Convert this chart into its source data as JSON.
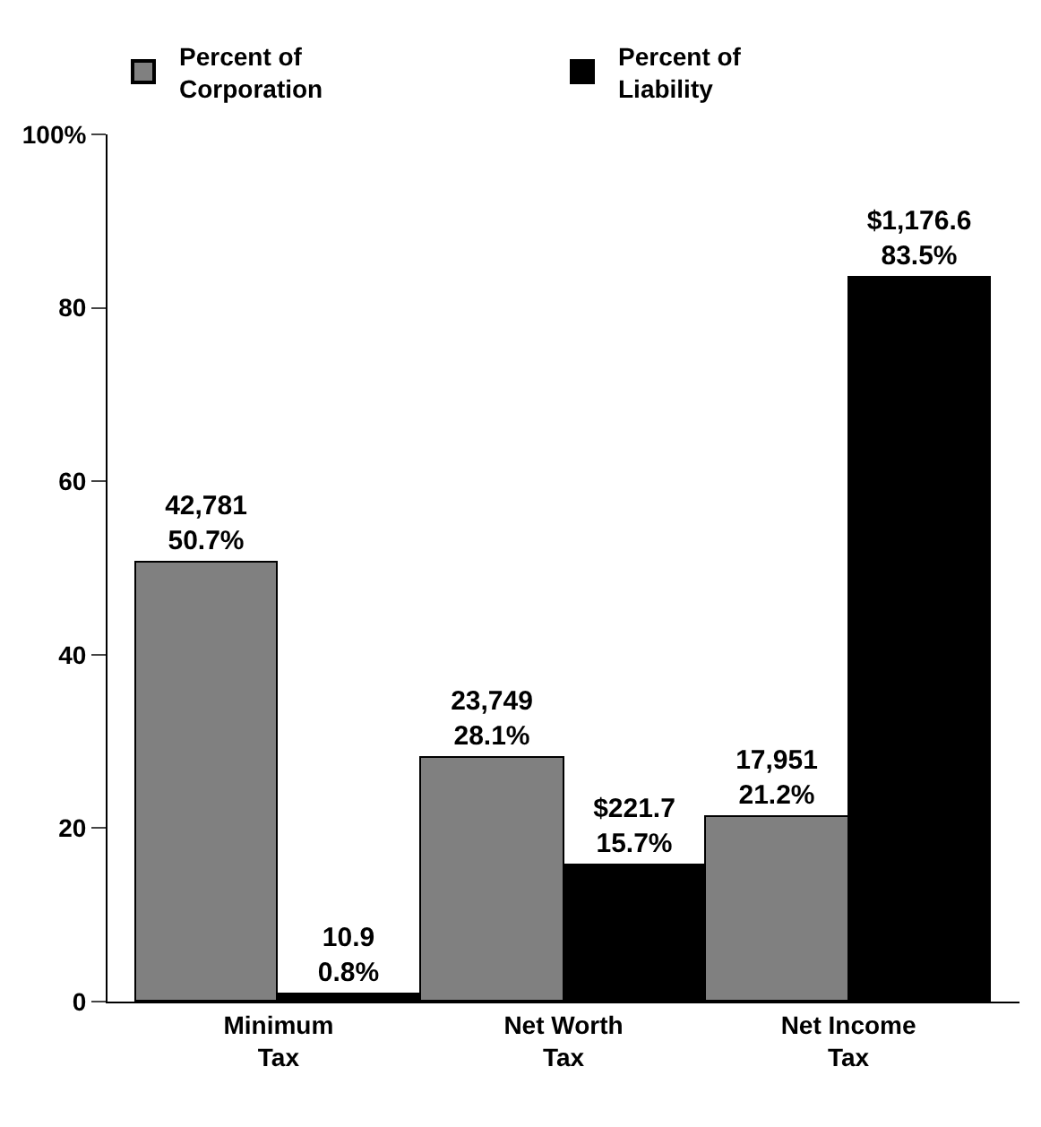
{
  "chart_data": {
    "type": "bar",
    "categories": [
      "Minimum\nTax",
      "Net Worth\nTax",
      "Net Income\nTax"
    ],
    "series": [
      {
        "name": "Percent of\nCorporation",
        "color": "#808080",
        "values": [
          50.7,
          28.1,
          21.2
        ],
        "value_labels": [
          "42,781\n50.7%",
          "23,749\n28.1%",
          "17,951\n21.2%"
        ]
      },
      {
        "name": "Percent of\nLiability",
        "color": "#000000",
        "values": [
          0.8,
          15.7,
          83.5
        ],
        "value_labels": [
          "10.9\n0.8%",
          "$221.7\n15.7%",
          "$1,176.6\n83.5%"
        ]
      }
    ],
    "ylim": [
      0,
      100
    ],
    "yticks": [
      0,
      20,
      40,
      60,
      {
        "value": 80,
        "label": "80"
      },
      {
        "value": 100,
        "label": "100%"
      }
    ],
    "legend": "top"
  }
}
